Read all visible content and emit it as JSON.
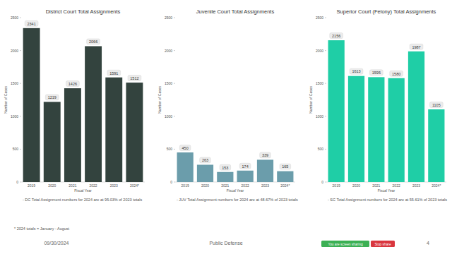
{
  "chart_data": [
    {
      "type": "bar",
      "title": "District Court Total Assignments",
      "categories": [
        "2019",
        "2020",
        "2021",
        "2022",
        "2023",
        "2024*"
      ],
      "values": [
        2341,
        1219,
        1426,
        2066,
        1591,
        1512
      ],
      "color": "#33433e",
      "ylim": [
        0,
        2500
      ],
      "yticks": [
        0,
        500,
        1000,
        1500,
        2000,
        2500
      ],
      "grid": false,
      "data_labels": true,
      "x_label": "Fiscal Year",
      "y_label": "Number of Cases",
      "annotation": "- DC Total Assignment numbers for 2024 are at 95.03% of 2023 totals"
    },
    {
      "type": "bar",
      "title": "Juvenile Court Total Assignments",
      "categories": [
        "2019",
        "2020",
        "2021",
        "2022",
        "2023",
        "2024*"
      ],
      "values": [
        450,
        263,
        153,
        174,
        339,
        165
      ],
      "color": "#6b9dab",
      "ylim": [
        0,
        2500
      ],
      "yticks": [
        0,
        500,
        1000,
        1500,
        2000,
        2500
      ],
      "grid": false,
      "data_labels": true,
      "x_label": "Fiscal Year",
      "y_label": "Number of Cases",
      "annotation": "- JUV Total Assignment numbers for 2024 are at 48.67% of 2023 totals"
    },
    {
      "type": "bar",
      "title": "Superior Court (Felony) Total Assignments",
      "categories": [
        "2019",
        "2020",
        "2021",
        "2022",
        "2023",
        "2024*"
      ],
      "values": [
        2156,
        1613,
        1595,
        1580,
        1987,
        1105
      ],
      "color": "#1fcea6",
      "ylim": [
        0,
        2500
      ],
      "yticks": [
        0,
        500,
        1000,
        1500,
        2000,
        2500
      ],
      "grid": false,
      "data_labels": true,
      "x_label": "Fiscal Year",
      "y_label": "Number of Cases",
      "annotation": "- SC Total Assignment numbers for 2024 are at 55.61% of 2023 totals"
    }
  ],
  "page": {
    "footnote": "* 2024 totals = January - August",
    "date": "09/30/2024",
    "footer_title": "Public Defense",
    "page_number": "4",
    "share_status": "You are screen sharing",
    "stop_share": "Stop share"
  }
}
